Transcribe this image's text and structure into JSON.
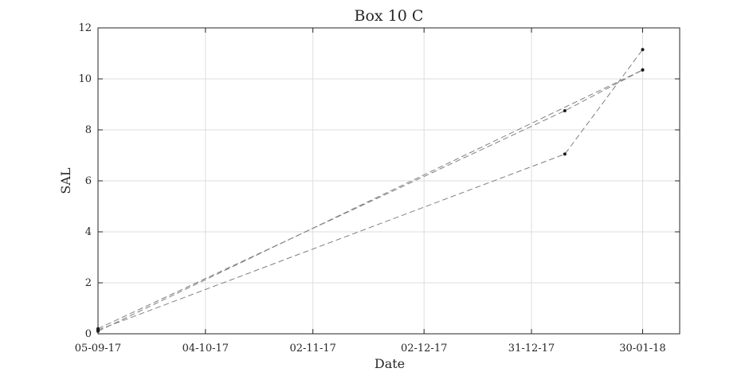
{
  "chart_data": {
    "type": "line",
    "title": "Box 10 C",
    "xlabel": "Date",
    "ylabel": "SAL",
    "x_tick_labels": [
      "05-09-17",
      "04-10-17",
      "02-11-17",
      "02-12-17",
      "31-12-17",
      "30-01-18"
    ],
    "x_ticks": [
      "2017-09-05",
      "2017-10-04",
      "2017-11-02",
      "2017-12-02",
      "2017-12-31",
      "2018-01-30"
    ],
    "xlim": [
      "2017-09-05",
      "2018-02-09"
    ],
    "ylim": [
      0,
      12
    ],
    "y_ticks": [
      0,
      2,
      4,
      6,
      8,
      10,
      12
    ],
    "grid": true,
    "series": [
      {
        "x": [
          "2017-09-05",
          "2018-01-09",
          "2018-01-30"
        ],
        "values": [
          0.2,
          8.75,
          10.35
        ],
        "color": "#808080"
      },
      {
        "x": [
          "2017-09-05",
          "2018-01-09",
          "2018-01-30"
        ],
        "values": [
          0.15,
          7.05,
          11.15
        ],
        "color": "#808080"
      },
      {
        "x": [
          "2017-09-05",
          "2018-01-30"
        ],
        "values": [
          0.1,
          10.35
        ],
        "color": "#808080"
      }
    ]
  }
}
